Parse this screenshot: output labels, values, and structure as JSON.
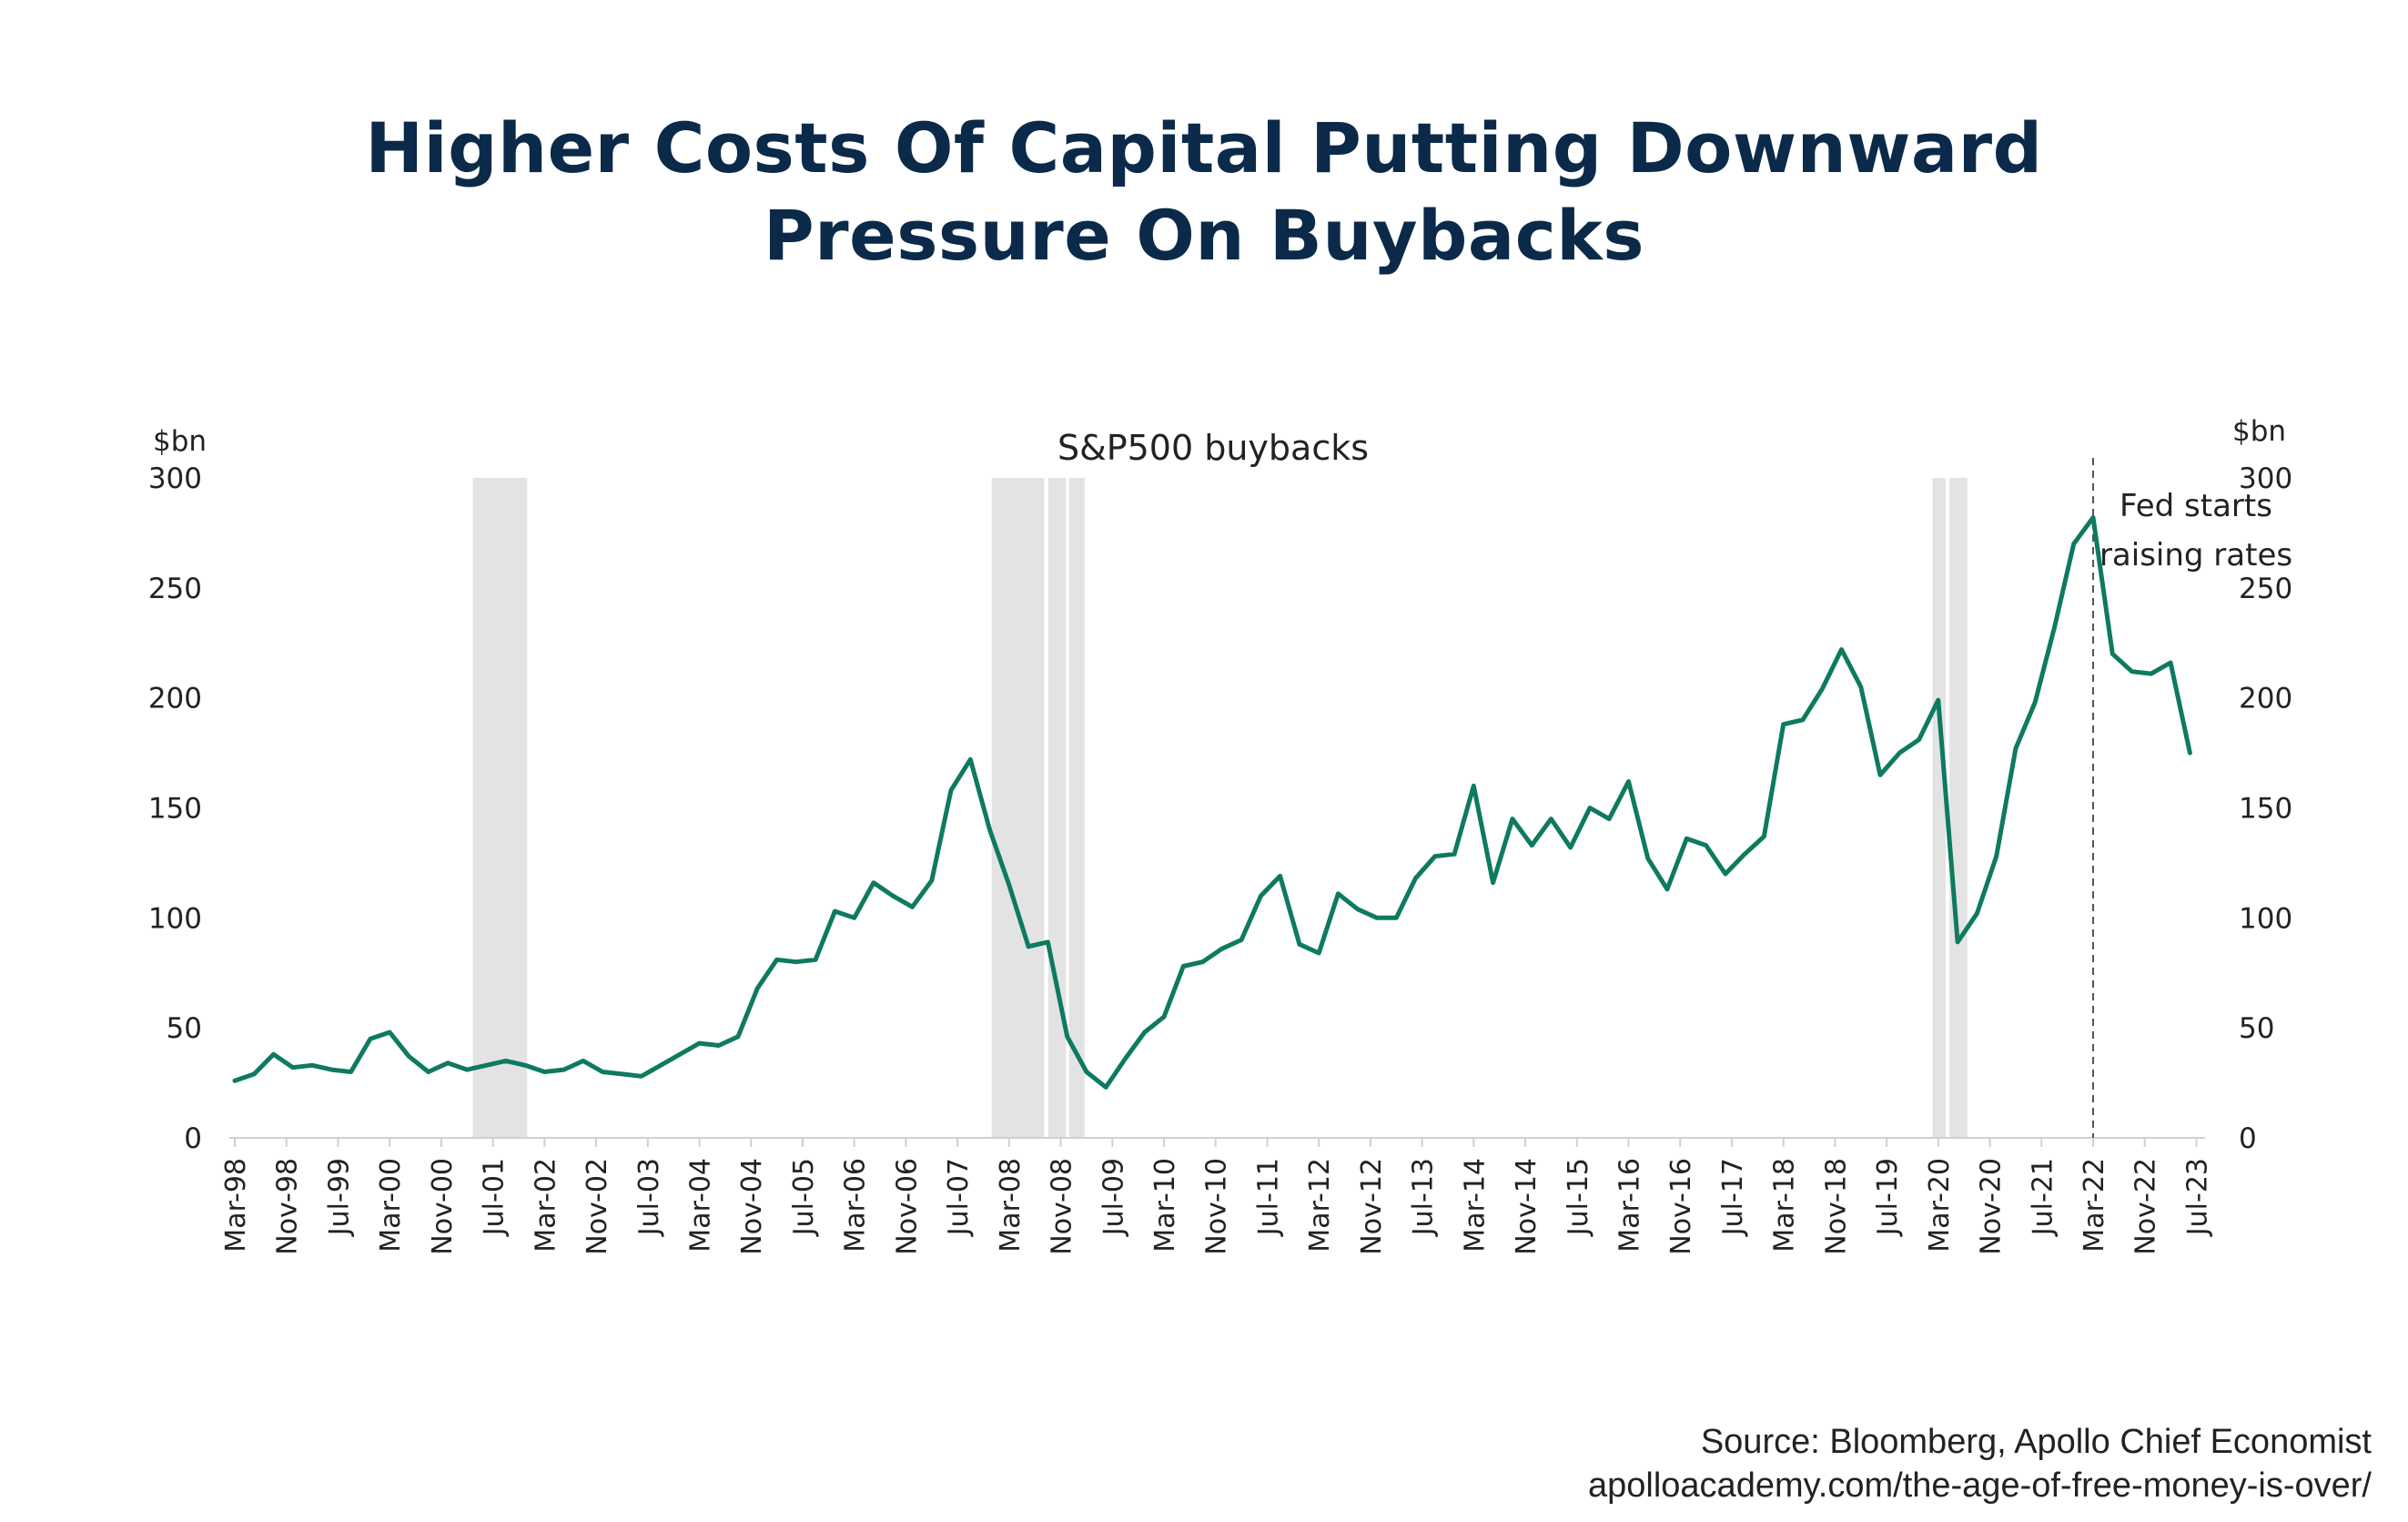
{
  "title": {
    "line1": "Higher Costs Of Capital Putting Downward",
    "line2": "Pressure On Buybacks"
  },
  "source": {
    "line1": "Source: Bloomberg, Apollo Chief Economist",
    "line2": "apolloacademy.com/the-age-of-free-money-is-over/"
  },
  "colors": {
    "title": "#0b2a4a",
    "line": "#0e7a5f",
    "recession": "#e3e3e3",
    "axis": "#d0d0d0",
    "text": "#222222"
  },
  "chart_data": {
    "type": "line",
    "title": "S&P500 buybacks",
    "ylabel_left": "$bn",
    "ylabel_right": "$bn",
    "ylim": [
      0,
      300
    ],
    "yticks": [
      0,
      50,
      100,
      150,
      200,
      250,
      300
    ],
    "xlim": [
      1998.125,
      2023.5
    ],
    "grid": false,
    "x_tick_labels": [
      "Mar-98",
      "Nov-98",
      "Jul-99",
      "Mar-00",
      "Nov-00",
      "Jul-01",
      "Mar-02",
      "Nov-02",
      "Jul-03",
      "Mar-04",
      "Nov-04",
      "Jul-05",
      "Mar-06",
      "Nov-06",
      "Jul-07",
      "Mar-08",
      "Nov-08",
      "Jul-09",
      "Mar-10",
      "Nov-10",
      "Jul-11",
      "Mar-12",
      "Nov-12",
      "Jul-13",
      "Mar-14",
      "Nov-14",
      "Jul-15",
      "Mar-16",
      "Nov-16",
      "Jul-17",
      "Mar-18",
      "Nov-18",
      "Jul-19",
      "Mar-20",
      "Nov-20",
      "Jul-21",
      "Mar-22",
      "Nov-22",
      "Jul-23"
    ],
    "recessions": [
      {
        "start": 2001.2,
        "end": 2001.9
      },
      {
        "start": 2007.9,
        "end": 2008.58
      },
      {
        "start": 2008.63,
        "end": 2008.86
      },
      {
        "start": 2008.9,
        "end": 2009.1
      },
      {
        "start": 2020.05,
        "end": 2020.22
      },
      {
        "start": 2020.27,
        "end": 2020.5
      }
    ],
    "annotation": {
      "x": 2022.125,
      "lines": [
        "Fed starts",
        "raising rates"
      ]
    },
    "series": [
      {
        "name": "S&P500 buybacks",
        "x": [
          1998.125,
          1998.375,
          1998.625,
          1998.875,
          1999.125,
          1999.375,
          1999.625,
          1999.875,
          2000.125,
          2000.375,
          2000.625,
          2000.875,
          2001.125,
          2001.375,
          2001.625,
          2001.875,
          2002.125,
          2002.375,
          2002.625,
          2002.875,
          2003.125,
          2003.375,
          2003.625,
          2003.875,
          2004.125,
          2004.375,
          2004.625,
          2004.875,
          2005.125,
          2005.375,
          2005.625,
          2005.875,
          2006.125,
          2006.375,
          2006.625,
          2006.875,
          2007.125,
          2007.375,
          2007.625,
          2007.875,
          2008.125,
          2008.375,
          2008.625,
          2008.875,
          2009.125,
          2009.375,
          2009.625,
          2009.875,
          2010.125,
          2010.375,
          2010.625,
          2010.875,
          2011.125,
          2011.375,
          2011.625,
          2011.875,
          2012.125,
          2012.375,
          2012.625,
          2012.875,
          2013.125,
          2013.375,
          2013.625,
          2013.875,
          2014.125,
          2014.375,
          2014.625,
          2014.875,
          2015.125,
          2015.375,
          2015.625,
          2015.875,
          2016.125,
          2016.375,
          2016.625,
          2016.875,
          2017.125,
          2017.375,
          2017.625,
          2017.875,
          2018.125,
          2018.375,
          2018.625,
          2018.875,
          2019.125,
          2019.375,
          2019.625,
          2019.875,
          2020.125,
          2020.375,
          2020.625,
          2020.875,
          2021.125,
          2021.375,
          2021.625,
          2021.875,
          2022.125,
          2022.375,
          2022.625,
          2022.875,
          2023.125,
          2023.375
        ],
        "values": [
          26,
          29,
          38,
          32,
          33,
          31,
          30,
          45,
          48,
          37,
          30,
          34,
          31,
          33,
          35,
          33,
          30,
          31,
          35,
          30,
          29,
          28,
          33,
          38,
          43,
          42,
          46,
          68,
          81,
          80,
          81,
          103,
          100,
          116,
          110,
          105,
          117,
          158,
          172,
          140,
          115,
          87,
          89,
          46,
          30,
          23,
          36,
          48,
          55,
          78,
          80,
          86,
          90,
          110,
          119,
          88,
          84,
          111,
          104,
          100,
          100,
          118,
          128,
          129,
          160,
          116,
          145,
          133,
          145,
          132,
          150,
          145,
          162,
          127,
          113,
          136,
          133,
          120,
          129,
          137,
          188,
          190,
          204,
          222,
          205,
          165,
          175,
          181,
          199,
          89,
          102,
          128,
          177,
          198,
          232,
          270,
          282,
          220,
          212,
          211,
          216,
          175
        ]
      }
    ]
  }
}
